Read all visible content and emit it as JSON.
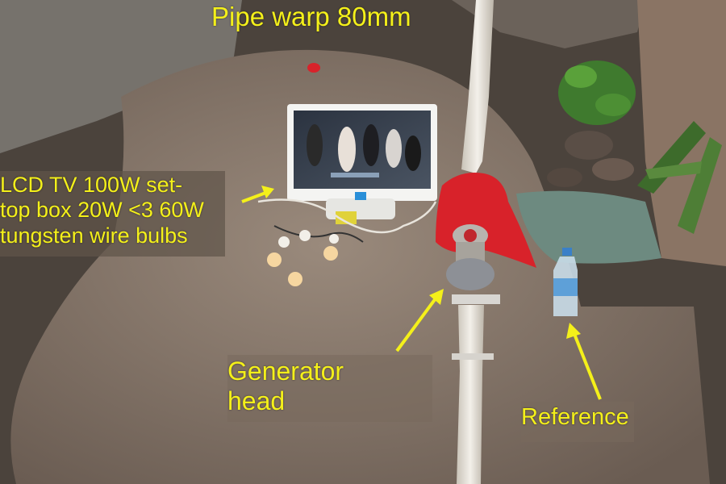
{
  "labels": {
    "pipe_warp": "Pipe warp 80mm",
    "lcd_tv_line1": "LCD TV 100W set-",
    "lcd_tv_line2": "top box 20W <3 60W",
    "lcd_tv_line3": "tungsten wire bulbs",
    "generator_line1": "Generator",
    "generator_line2": "head",
    "reference": "Reference"
  },
  "colors": {
    "label_text": "#f4f01a",
    "arrow": "#f4f01a",
    "rock": "#8a7a6c",
    "water": "#6d8a80",
    "plastic_bag": "#d8222a",
    "pipe": "#e8e4dc"
  }
}
